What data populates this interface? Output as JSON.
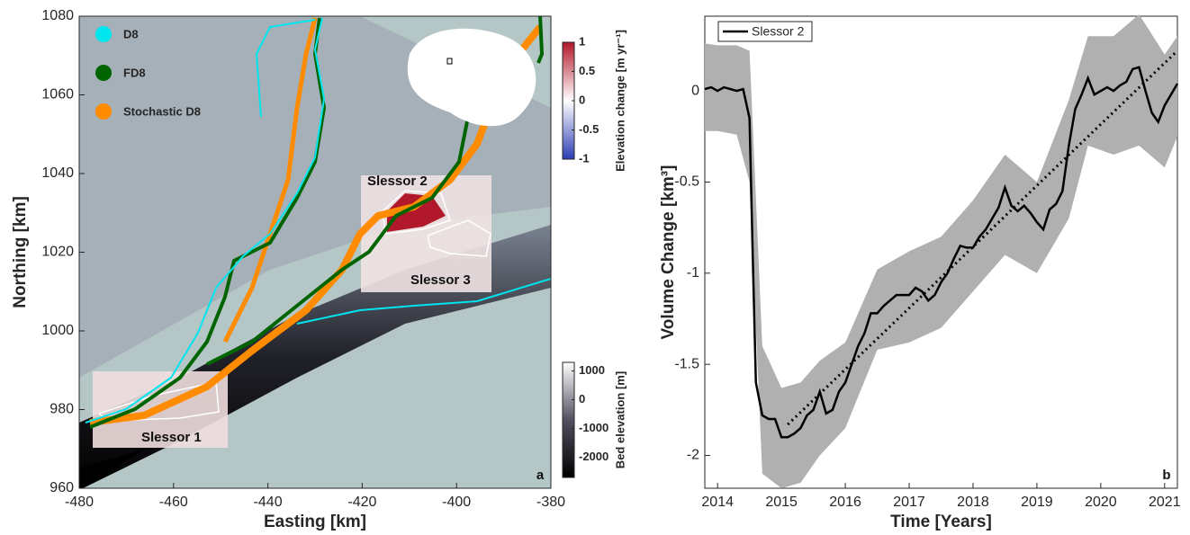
{
  "chart_data": [
    {
      "type": "map",
      "xlabel": "Easting [km]",
      "ylabel": "Northing [km]",
      "xlim": [
        -480,
        -380
      ],
      "xticks": [
        -480,
        -460,
        -440,
        -420,
        -400,
        -380
      ],
      "ylim": [
        960,
        1080
      ],
      "yticks": [
        960,
        980,
        1000,
        1020,
        1040,
        1060,
        1080
      ],
      "legend": [
        {
          "name": "D8",
          "color": "#00e5ee"
        },
        {
          "name": "FD8",
          "color": "#006400"
        },
        {
          "name": "Stochastic D8",
          "color": "#ff8c00"
        }
      ],
      "annotations": [
        "Slessor 1",
        "Slessor 2",
        "Slessor 3"
      ],
      "panel_label": "a",
      "colorbars": [
        {
          "label": "Elevation change [m yr⁻¹]",
          "lim": [
            -1,
            1
          ],
          "ticks": [
            1,
            0.5,
            0,
            -0.5,
            -1
          ],
          "colors": [
            "#2c3cb4",
            "#ffffff",
            "#b2182b"
          ]
        },
        {
          "label": "Bed elevation [m]",
          "lim": [
            -2700,
            1300
          ],
          "ticks": [
            1000,
            0,
            -1000,
            -2000
          ],
          "colors": [
            "#000000",
            "#505060",
            "#ffffff"
          ]
        }
      ]
    },
    {
      "type": "line",
      "xlabel": "Time [Years]",
      "ylabel": "Volume Change [km³]",
      "xlim": [
        2013.8,
        2021.2
      ],
      "xticks": [
        2014,
        2015,
        2016,
        2017,
        2018,
        2019,
        2020,
        2021
      ],
      "ylim": [
        -2.18,
        0.41
      ],
      "yticks": [
        -2,
        -1.5,
        -1,
        -0.5,
        0
      ],
      "legend": "upper left",
      "panel_label": "b",
      "series": [
        {
          "name": "Slessor 2",
          "color": "#000000",
          "x": [
            2013.8,
            2013.9,
            2014.0,
            2014.1,
            2014.2,
            2014.3,
            2014.4,
            2014.5,
            2014.55,
            2014.6,
            2014.7,
            2014.8,
            2014.9,
            2015.0,
            2015.1,
            2015.2,
            2015.3,
            2015.4,
            2015.5,
            2015.6,
            2015.7,
            2015.8,
            2015.9,
            2016.0,
            2016.1,
            2016.2,
            2016.3,
            2016.4,
            2016.5,
            2016.6,
            2016.7,
            2016.8,
            2016.9,
            2017.0,
            2017.1,
            2017.2,
            2017.3,
            2017.4,
            2017.5,
            2017.6,
            2017.7,
            2017.8,
            2017.9,
            2018.0,
            2018.1,
            2018.2,
            2018.3,
            2018.4,
            2018.5,
            2018.6,
            2018.7,
            2018.8,
            2018.9,
            2019.0,
            2019.1,
            2019.2,
            2019.3,
            2019.4,
            2019.5,
            2019.6,
            2019.7,
            2019.8,
            2019.9,
            2020.0,
            2020.1,
            2020.2,
            2020.3,
            2020.4,
            2020.5,
            2020.6,
            2020.7,
            2020.8,
            2020.9,
            2021.0,
            2021.2
          ],
          "values": [
            0.01,
            0.02,
            0.0,
            0.02,
            0.01,
            0.0,
            0.01,
            -0.15,
            -0.9,
            -1.6,
            -1.78,
            -1.8,
            -1.8,
            -1.9,
            -1.9,
            -1.88,
            -1.85,
            -1.78,
            -1.75,
            -1.65,
            -1.77,
            -1.75,
            -1.65,
            -1.6,
            -1.5,
            -1.4,
            -1.33,
            -1.22,
            -1.22,
            -1.18,
            -1.15,
            -1.12,
            -1.12,
            -1.12,
            -1.08,
            -1.1,
            -1.15,
            -1.12,
            -1.05,
            -1.0,
            -0.92,
            -0.85,
            -0.86,
            -0.86,
            -0.8,
            -0.76,
            -0.7,
            -0.64,
            -0.53,
            -0.63,
            -0.66,
            -0.63,
            -0.67,
            -0.72,
            -0.76,
            -0.65,
            -0.62,
            -0.55,
            -0.3,
            -0.1,
            -0.02,
            0.07,
            -0.02,
            0.0,
            0.02,
            0.0,
            0.03,
            0.05,
            0.12,
            0.13,
            0.0,
            -0.12,
            -0.17,
            -0.08,
            0.04
          ]
        }
      ],
      "band": {
        "color": "#b0b0b0",
        "x": [
          2013.8,
          2014.0,
          2014.3,
          2014.5,
          2014.7,
          2015.0,
          2015.3,
          2015.6,
          2016.0,
          2016.5,
          2017.0,
          2017.5,
          2018.0,
          2018.5,
          2019.0,
          2019.5,
          2019.8,
          2020.2,
          2020.6,
          2021.0,
          2021.2
        ],
        "upper": [
          0.26,
          0.25,
          0.25,
          0.22,
          -1.4,
          -1.63,
          -1.6,
          -1.48,
          -1.38,
          -0.98,
          -0.88,
          -0.8,
          -0.6,
          -0.35,
          -0.5,
          -0.05,
          0.3,
          0.3,
          0.42,
          0.2,
          0.3
        ],
        "lower": [
          -0.22,
          -0.22,
          -0.24,
          -0.5,
          -2.1,
          -2.18,
          -2.15,
          -2.0,
          -1.85,
          -1.42,
          -1.38,
          -1.3,
          -1.1,
          -0.9,
          -1.0,
          -0.7,
          -0.3,
          -0.35,
          -0.3,
          -0.42,
          -0.25
        ]
      },
      "trend": {
        "color": "#000000",
        "x": [
          2015.1,
          2021.2
        ],
        "values": [
          -1.83,
          0.22
        ]
      }
    }
  ]
}
